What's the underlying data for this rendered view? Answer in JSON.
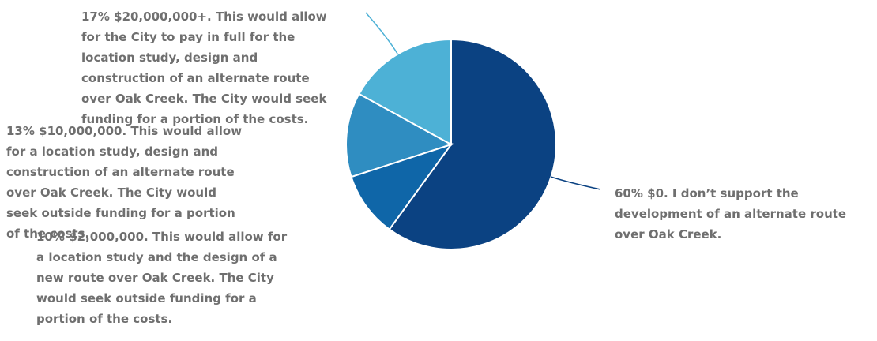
{
  "chart_data": {
    "type": "pie",
    "slices": [
      {
        "percent": 60,
        "color": "#0b4282",
        "label": "60% $0. I don’t support the development of an alternate route over Oak Creek."
      },
      {
        "percent": 10,
        "color": "#0f66a8",
        "label": "10% $2,000,000. This would allow for a location study and the design of a new route over Oak Creek. The City would seek outside funding for a portion of the costs."
      },
      {
        "percent": 13,
        "color": "#2f8dc1",
        "label": "13% $10,000,000. This would allow for a location study, design and construction of an alternate route over Oak Creek. The City would seek outside funding for a portion of the costs."
      },
      {
        "percent": 17,
        "color": "#4db1d6",
        "label": "17% $20,000,000+. This would allow for the City to pay in full for the location study, design and construction of an alternate route over Oak Creek. The City would seek funding for a portion of the costs."
      }
    ]
  }
}
